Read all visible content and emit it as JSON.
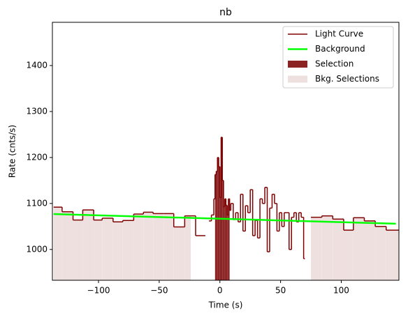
{
  "chart_data": {
    "type": "step",
    "title": "nb",
    "x_label": "Time (s)",
    "y_label": "Rate (cnts/s)",
    "xlim": [
      -138,
      147.5
    ],
    "ylim": [
      933,
      1494
    ],
    "xticks": [
      {
        "value": -100,
        "label": "−100"
      },
      {
        "value": -50,
        "label": "−50"
      },
      0,
      50,
      100
    ],
    "yticks": [
      1000,
      1100,
      1200,
      1300,
      1400
    ],
    "x": [
      -137,
      -130,
      -121,
      -113,
      -104,
      -97,
      -88,
      -80,
      -71,
      -63,
      -55,
      -46,
      -38,
      -29,
      -20,
      -12,
      -9,
      -7,
      -5,
      -4,
      -3,
      -2,
      -1,
      0,
      1,
      2,
      3,
      4,
      5,
      6,
      7,
      8,
      9,
      11,
      13,
      15,
      17,
      19,
      21,
      23,
      25,
      27,
      29,
      31,
      33,
      35,
      37,
      39,
      41,
      43,
      45,
      47,
      49,
      51,
      53,
      55,
      57,
      59,
      61,
      63,
      65,
      67,
      69,
      70,
      75,
      84,
      93,
      102,
      110,
      119,
      128,
      137
    ],
    "series": [
      {
        "name": "Light Curve",
        "color": "#7f0000",
        "values": [
          1092,
          1082,
          1064,
          1086,
          1064,
          1068,
          1060,
          1063,
          1077,
          1081,
          1078,
          1078,
          1049,
          1073,
          1030,
          null,
          1062,
          1075,
          1110,
          1163,
          1170,
          1200,
          1180,
          1113,
          1244,
          1150,
          1093,
          1110,
          1096,
          1075,
          1110,
          1085,
          1100,
          1065,
          1080,
          1060,
          1120,
          1040,
          1095,
          1080,
          1130,
          1030,
          1063,
          1025,
          1110,
          1100,
          1135,
          995,
          1090,
          1120,
          1100,
          1040,
          1080,
          1050,
          1080,
          1080,
          1000,
          1070,
          1080,
          1060,
          1080,
          1070,
          980,
          null,
          1070,
          1073,
          1066,
          1042,
          1069,
          1062,
          1050,
          1042
        ]
      },
      {
        "name": "Background",
        "color": "#00ff00",
        "x": [
          -137,
          145
        ],
        "values": [
          1077,
          1056
        ]
      }
    ],
    "selection": {
      "name": "Selection",
      "color": "#8b2323",
      "range": [
        -4,
        8
      ]
    },
    "bkg_selections": {
      "name": "Bkg. Selections",
      "color": "#efe0e0",
      "ranges": [
        [
          -137,
          -24
        ],
        [
          75,
          147.5
        ]
      ]
    },
    "legend": "upper right"
  }
}
